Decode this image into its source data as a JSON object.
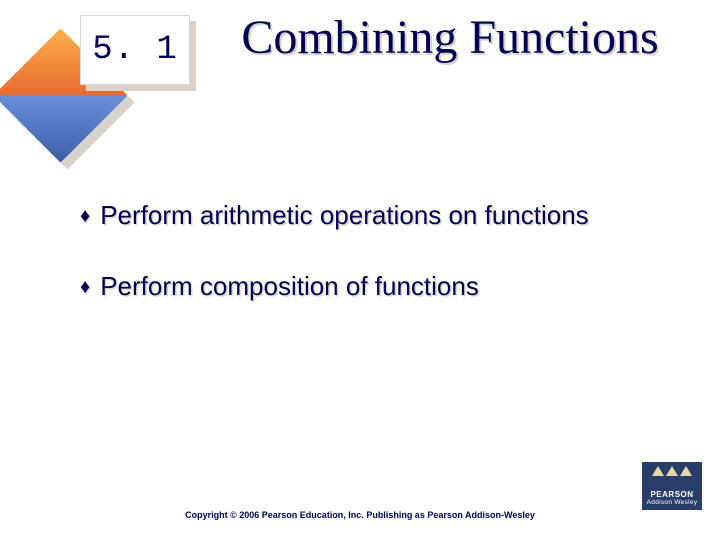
{
  "section_number": "5. 1",
  "title": "Combining Functions",
  "bullets": [
    "Perform arithmetic operations on functions",
    "Perform composition of functions"
  ],
  "copyright": "Copyright © 2006 Pearson Education, Inc.  Publishing as Pearson Addison-Wesley",
  "logo": {
    "line1": "PEARSON",
    "line2": "Addison Wesley"
  },
  "colors": {
    "text": "#000052",
    "shadow": "#d9d2cb",
    "diamond_warm_light": "#fdb04d",
    "diamond_warm_dark": "#e66b2e",
    "diamond_cool_light": "#6a8fd8",
    "diamond_cool_dark": "#3d5fa8",
    "logo_bg": "#2a3e6a"
  },
  "typography": {
    "title_fontsize": 48,
    "section_fontsize": 34,
    "bullet_fontsize": 26,
    "copyright_fontsize": 9
  }
}
